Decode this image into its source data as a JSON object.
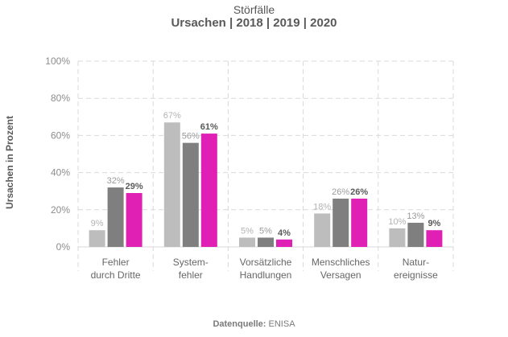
{
  "title": {
    "line1": "Störfälle",
    "line2": "Ursachen | 2018 | 2019 | 2020"
  },
  "source": {
    "label": "Datenquelle:",
    "value": "ENISA"
  },
  "chart_data": {
    "type": "bar",
    "title": "Störfälle — Ursachen | 2018 | 2019 | 2020",
    "xlabel": "",
    "ylabel": "Ursachen in Prozent",
    "ylim": [
      0,
      100
    ],
    "yticks": [
      0,
      20,
      40,
      60,
      80,
      100
    ],
    "ytick_labels": [
      "0%",
      "20%",
      "40%",
      "60%",
      "80%",
      "100%"
    ],
    "grid": true,
    "categories": [
      [
        "Fehler",
        "durch Dritte"
      ],
      [
        "System-",
        "fehler"
      ],
      [
        "Vorsätzliche",
        "Handlungen"
      ],
      [
        "Menschliches",
        "Versagen"
      ],
      [
        "Natur-",
        "ereignisse"
      ]
    ],
    "series": [
      {
        "name": "2018",
        "color": "#bdbdbd",
        "label_color": "#b3b3b3",
        "bold": false,
        "values": [
          9,
          67,
          5,
          18,
          10
        ],
        "labels": [
          "9%",
          "67%",
          "5%",
          "18%",
          "10%"
        ]
      },
      {
        "name": "2019",
        "color": "#7f7f7f",
        "label_color": "#9a9a9a",
        "bold": false,
        "values": [
          32,
          56,
          5,
          26,
          13
        ],
        "labels": [
          "32%",
          "56%",
          "5%",
          "26%",
          "13%"
        ]
      },
      {
        "name": "2020",
        "color": "#e020b4",
        "label_color": "#595959",
        "bold": true,
        "values": [
          29,
          61,
          4,
          26,
          9
        ],
        "labels": [
          "29%",
          "61%",
          "4%",
          "26%",
          "9%"
        ]
      }
    ]
  }
}
